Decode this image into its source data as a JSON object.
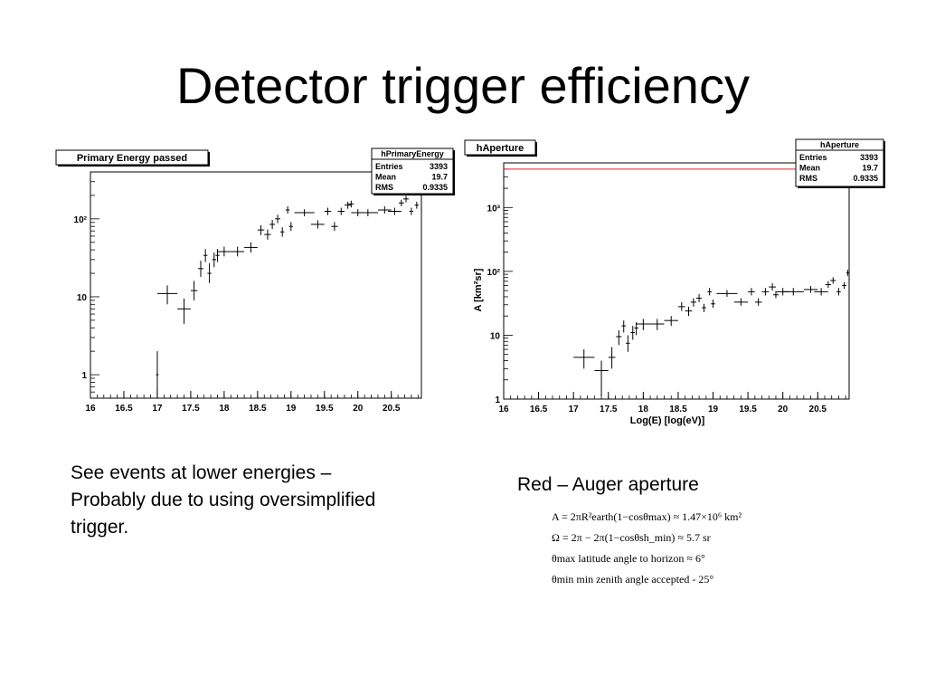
{
  "slide": {
    "title": "Detector trigger efficiency",
    "left_caption": [
      "See events at lower energies –",
      "Probably due to using oversimplified",
      "trigger."
    ],
    "right_caption": "Red – Auger aperture",
    "formulas": [
      "A = 2πR²earth(1−cosθmax) ≈ 1.47×10⁶ km²",
      "Ω = 2π − 2π(1−cosθsh_min) ≈ 5.7 sr",
      "θmax latitude angle to horizon ≈ 6°",
      "θmin min zenith angle accepted - 25°"
    ]
  },
  "chart_data": [
    {
      "type": "scatter",
      "title": "Primary Energy passed",
      "xlabel": "",
      "ylabel": "",
      "xlim": [
        16,
        20.95
      ],
      "ylim": [
        0.5,
        400
      ],
      "yscale": "log",
      "xticks": [
        "16",
        "16.5",
        "17",
        "17.5",
        "18",
        "18.5",
        "19",
        "19.5",
        "20",
        "20.5"
      ],
      "yticks": [
        {
          "value": 1,
          "label": "1"
        },
        {
          "value": 10,
          "label": "10"
        },
        {
          "value": 100,
          "label": "10²"
        }
      ],
      "stats": {
        "name": "hPrimaryEnergy",
        "rows": [
          [
            "Entries",
            "3393"
          ],
          [
            "Mean",
            "19.7"
          ],
          [
            "RMS",
            "0.9335"
          ]
        ]
      },
      "series": [
        {
          "points": [
            {
              "x": 17.0,
              "y": 1,
              "xerr": 0.02,
              "ylo": 0.45,
              "yhi": 2
            },
            {
              "x": 17.15,
              "y": 11,
              "xerr": 0.15,
              "ylo": 8,
              "yhi": 14
            },
            {
              "x": 17.4,
              "y": 7,
              "xerr": 0.1,
              "ylo": 4.5,
              "yhi": 9.5
            },
            {
              "x": 17.55,
              "y": 12,
              "xerr": 0.05,
              "ylo": 9,
              "yhi": 16
            },
            {
              "x": 17.65,
              "y": 23,
              "xerr": 0.04,
              "ylo": 18,
              "yhi": 29
            },
            {
              "x": 17.72,
              "y": 34,
              "xerr": 0.03,
              "ylo": 28,
              "yhi": 41
            },
            {
              "x": 17.78,
              "y": 20,
              "xerr": 0.03,
              "ylo": 15,
              "yhi": 27
            },
            {
              "x": 17.85,
              "y": 30,
              "xerr": 0.03,
              "ylo": 24,
              "yhi": 37
            },
            {
              "x": 17.9,
              "y": 34,
              "xerr": 0.03,
              "ylo": 28,
              "yhi": 41
            },
            {
              "x": 18.0,
              "y": 38,
              "xerr": 0.1,
              "ylo": 33,
              "yhi": 44
            },
            {
              "x": 18.2,
              "y": 38,
              "xerr": 0.1,
              "ylo": 33,
              "yhi": 44
            },
            {
              "x": 18.4,
              "y": 43,
              "xerr": 0.1,
              "ylo": 37,
              "yhi": 50
            },
            {
              "x": 18.55,
              "y": 72,
              "xerr": 0.05,
              "ylo": 62,
              "yhi": 83
            },
            {
              "x": 18.65,
              "y": 63,
              "xerr": 0.05,
              "ylo": 54,
              "yhi": 73
            },
            {
              "x": 18.72,
              "y": 85,
              "xerr": 0.04,
              "ylo": 74,
              "yhi": 97
            },
            {
              "x": 18.8,
              "y": 100,
              "xerr": 0.04,
              "ylo": 88,
              "yhi": 113
            },
            {
              "x": 18.87,
              "y": 68,
              "xerr": 0.03,
              "ylo": 59,
              "yhi": 78
            },
            {
              "x": 18.95,
              "y": 130,
              "xerr": 0.03,
              "ylo": 117,
              "yhi": 145
            },
            {
              "x": 19.0,
              "y": 80,
              "xerr": 0.03,
              "ylo": 70,
              "yhi": 91
            },
            {
              "x": 19.2,
              "y": 120,
              "xerr": 0.15,
              "ylo": 108,
              "yhi": 133
            },
            {
              "x": 19.4,
              "y": 85,
              "xerr": 0.1,
              "ylo": 75,
              "yhi": 96
            },
            {
              "x": 19.55,
              "y": 125,
              "xerr": 0.05,
              "ylo": 112,
              "yhi": 139
            },
            {
              "x": 19.65,
              "y": 80,
              "xerr": 0.05,
              "ylo": 70,
              "yhi": 91
            },
            {
              "x": 19.75,
              "y": 125,
              "xerr": 0.05,
              "ylo": 112,
              "yhi": 139
            },
            {
              "x": 19.85,
              "y": 150,
              "xerr": 0.05,
              "ylo": 135,
              "yhi": 166
            },
            {
              "x": 19.9,
              "y": 155,
              "xerr": 0.04,
              "ylo": 140,
              "yhi": 171
            },
            {
              "x": 20.0,
              "y": 120,
              "xerr": 0.1,
              "ylo": 108,
              "yhi": 133
            },
            {
              "x": 20.15,
              "y": 120,
              "xerr": 0.15,
              "ylo": 108,
              "yhi": 133
            },
            {
              "x": 20.4,
              "y": 130,
              "xerr": 0.1,
              "ylo": 117,
              "yhi": 145
            },
            {
              "x": 20.55,
              "y": 125,
              "xerr": 0.1,
              "ylo": 112,
              "yhi": 139
            },
            {
              "x": 20.65,
              "y": 160,
              "xerr": 0.04,
              "ylo": 145,
              "yhi": 176
            },
            {
              "x": 20.72,
              "y": 180,
              "xerr": 0.04,
              "ylo": 163,
              "yhi": 198
            },
            {
              "x": 20.8,
              "y": 125,
              "xerr": 0.03,
              "ylo": 112,
              "yhi": 139
            },
            {
              "x": 20.88,
              "y": 150,
              "xerr": 0.03,
              "ylo": 135,
              "yhi": 166
            },
            {
              "x": 20.93,
              "y": 240,
              "xerr": 0.02,
              "ylo": 218,
              "yhi": 263
            }
          ]
        }
      ]
    },
    {
      "type": "scatter",
      "title": "hAperture",
      "xlabel": "Log(E) [log(eV)]",
      "ylabel": "A [km²sr]",
      "xlim": [
        16,
        20.95
      ],
      "ylim": [
        1,
        5000
      ],
      "yscale": "log",
      "xticks": [
        "16",
        "16.5",
        "17",
        "17.5",
        "18",
        "18.5",
        "19",
        "19.5",
        "20",
        "20.5"
      ],
      "yticks": [
        {
          "value": 1,
          "label": "1"
        },
        {
          "value": 10,
          "label": "10"
        },
        {
          "value": 100,
          "label": "10²"
        },
        {
          "value": 1000,
          "label": "10³"
        }
      ],
      "stats": {
        "name": "hAperture",
        "rows": [
          [
            "Entries",
            "3393"
          ],
          [
            "Mean",
            "19.7"
          ],
          [
            "RMS",
            "0.9335"
          ]
        ]
      },
      "reference_lines": [
        {
          "y": 4000,
          "color": "#e02020"
        }
      ],
      "series": [
        {
          "points": [
            {
              "x": 17.15,
              "y": 4.5,
              "xerr": 0.15,
              "ylo": 3,
              "yhi": 6
            },
            {
              "x": 17.4,
              "y": 2.8,
              "xerr": 0.1,
              "ylo": 1.1,
              "yhi": 4
            },
            {
              "x": 17.55,
              "y": 4.5,
              "xerr": 0.05,
              "ylo": 3,
              "yhi": 6.5
            },
            {
              "x": 17.65,
              "y": 9.5,
              "xerr": 0.04,
              "ylo": 7,
              "yhi": 12
            },
            {
              "x": 17.72,
              "y": 14,
              "xerr": 0.03,
              "ylo": 11,
              "yhi": 17
            },
            {
              "x": 17.78,
              "y": 7.5,
              "xerr": 0.03,
              "ylo": 5.5,
              "yhi": 10
            },
            {
              "x": 17.85,
              "y": 11,
              "xerr": 0.03,
              "ylo": 8.5,
              "yhi": 14
            },
            {
              "x": 17.9,
              "y": 13,
              "xerr": 0.03,
              "ylo": 10,
              "yhi": 16
            },
            {
              "x": 18.0,
              "y": 15,
              "xerr": 0.1,
              "ylo": 12,
              "yhi": 18
            },
            {
              "x": 18.2,
              "y": 15,
              "xerr": 0.1,
              "ylo": 12,
              "yhi": 18
            },
            {
              "x": 18.4,
              "y": 17,
              "xerr": 0.1,
              "ylo": 14,
              "yhi": 20
            },
            {
              "x": 18.55,
              "y": 28,
              "xerr": 0.05,
              "ylo": 24,
              "yhi": 33
            },
            {
              "x": 18.65,
              "y": 24,
              "xerr": 0.05,
              "ylo": 20,
              "yhi": 28
            },
            {
              "x": 18.72,
              "y": 33,
              "xerr": 0.04,
              "ylo": 28,
              "yhi": 38
            },
            {
              "x": 18.8,
              "y": 38,
              "xerr": 0.04,
              "ylo": 33,
              "yhi": 44
            },
            {
              "x": 18.87,
              "y": 27,
              "xerr": 0.03,
              "ylo": 23,
              "yhi": 31
            },
            {
              "x": 18.95,
              "y": 48,
              "xerr": 0.03,
              "ylo": 42,
              "yhi": 55
            },
            {
              "x": 19.0,
              "y": 31,
              "xerr": 0.03,
              "ylo": 27,
              "yhi": 36
            },
            {
              "x": 19.2,
              "y": 45,
              "xerr": 0.15,
              "ylo": 40,
              "yhi": 51
            },
            {
              "x": 19.4,
              "y": 33,
              "xerr": 0.1,
              "ylo": 29,
              "yhi": 38
            },
            {
              "x": 19.55,
              "y": 48,
              "xerr": 0.05,
              "ylo": 42,
              "yhi": 55
            },
            {
              "x": 19.65,
              "y": 33,
              "xerr": 0.05,
              "ylo": 29,
              "yhi": 38
            },
            {
              "x": 19.75,
              "y": 48,
              "xerr": 0.05,
              "ylo": 42,
              "yhi": 55
            },
            {
              "x": 19.85,
              "y": 57,
              "xerr": 0.05,
              "ylo": 50,
              "yhi": 65
            },
            {
              "x": 19.9,
              "y": 43,
              "xerr": 0.04,
              "ylo": 38,
              "yhi": 49
            },
            {
              "x": 20.0,
              "y": 48,
              "xerr": 0.1,
              "ylo": 42,
              "yhi": 55
            },
            {
              "x": 20.15,
              "y": 48,
              "xerr": 0.15,
              "ylo": 42,
              "yhi": 55
            },
            {
              "x": 20.4,
              "y": 52,
              "xerr": 0.1,
              "ylo": 46,
              "yhi": 59
            },
            {
              "x": 20.55,
              "y": 48,
              "xerr": 0.1,
              "ylo": 42,
              "yhi": 55
            },
            {
              "x": 20.65,
              "y": 62,
              "xerr": 0.04,
              "ylo": 55,
              "yhi": 70
            },
            {
              "x": 20.72,
              "y": 72,
              "xerr": 0.04,
              "ylo": 64,
              "yhi": 81
            },
            {
              "x": 20.8,
              "y": 48,
              "xerr": 0.03,
              "ylo": 42,
              "yhi": 55
            },
            {
              "x": 20.88,
              "y": 60,
              "xerr": 0.03,
              "ylo": 53,
              "yhi": 68
            },
            {
              "x": 20.93,
              "y": 95,
              "xerr": 0.02,
              "ylo": 85,
              "yhi": 106
            }
          ]
        }
      ]
    }
  ]
}
